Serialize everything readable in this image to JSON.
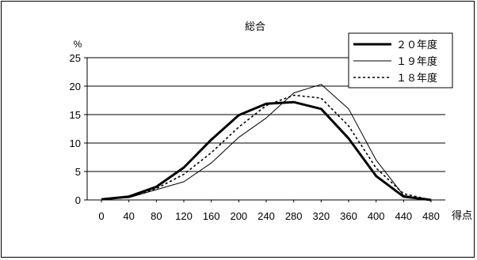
{
  "chart_data": {
    "type": "line",
    "title": "総合",
    "ylabel": "%",
    "xlabel": "得点",
    "x": [
      0,
      40,
      80,
      120,
      160,
      200,
      240,
      280,
      320,
      360,
      400,
      440,
      480
    ],
    "ylim": [
      0,
      25
    ],
    "yticks": [
      0,
      5,
      10,
      15,
      20,
      25
    ],
    "grid": true,
    "legend_position": "top-right",
    "series": [
      {
        "name": "２０年度",
        "style": "thick",
        "values": [
          0.1,
          0.6,
          2.3,
          5.7,
          10.6,
          14.9,
          16.9,
          17.2,
          16.0,
          10.8,
          4.2,
          0.6,
          0.0
        ]
      },
      {
        "name": "１９年度",
        "style": "thin",
        "values": [
          0.1,
          0.4,
          1.8,
          3.2,
          6.5,
          11.0,
          14.4,
          18.8,
          20.3,
          16.0,
          7.0,
          0.8,
          0.0
        ]
      },
      {
        "name": "１８年度",
        "style": "dotted",
        "values": [
          0.1,
          0.5,
          2.0,
          4.5,
          8.3,
          12.8,
          16.6,
          18.4,
          17.9,
          13.0,
          5.6,
          1.1,
          0.0
        ]
      }
    ]
  }
}
